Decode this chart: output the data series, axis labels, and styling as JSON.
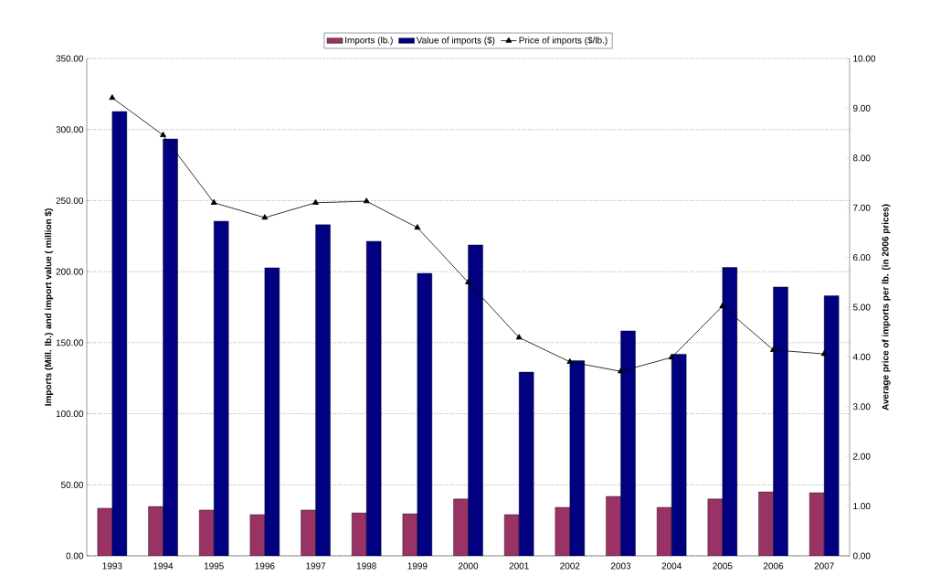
{
  "chart_data": {
    "type": "bar",
    "categories": [
      "1993",
      "1994",
      "1995",
      "1996",
      "1997",
      "1998",
      "1999",
      "2000",
      "2001",
      "2002",
      "2003",
      "2004",
      "2005",
      "2006",
      "2007"
    ],
    "series": [
      {
        "name": "Imports (lb.)",
        "color": "#993366",
        "values": [
          33.5,
          34.7,
          32.2,
          29.0,
          32.2,
          30.2,
          29.6,
          40.0,
          29.0,
          34.1,
          41.8,
          34.1,
          40.0,
          45.0,
          44.4
        ]
      },
      {
        "name": "Value of imports ($)",
        "color": "#000080",
        "values": [
          312.7,
          293.4,
          235.5,
          202.7,
          233.0,
          221.4,
          198.8,
          218.8,
          129.3,
          137.3,
          158.3,
          141.9,
          203.0,
          189.2,
          183.0
        ]
      },
      {
        "name": "Price of imports ($/lb.)",
        "type": "line",
        "axis": "y2",
        "marker": "triangle",
        "color": "#000000",
        "values": [
          9.21,
          8.46,
          7.1,
          6.8,
          7.1,
          7.13,
          6.6,
          5.5,
          4.39,
          3.9,
          3.71,
          3.99,
          5.02,
          4.14,
          4.06
        ]
      }
    ],
    "ylabel": "Imports (Mill. lb.) and import value  ( million $)",
    "y2label": "Average price of imports per lb. (in 2006 prices)",
    "ylim": [
      0,
      350
    ],
    "yticks": [
      {
        "value": 0,
        "label": "0.00"
      },
      {
        "value": 50,
        "label": "50.00"
      },
      {
        "value": 100,
        "label": "100.00"
      },
      {
        "value": 150,
        "label": "150.00"
      },
      {
        "value": 200,
        "label": "200.00"
      },
      {
        "value": 250,
        "label": "250.00"
      },
      {
        "value": 300,
        "label": "300.00"
      },
      {
        "value": 350,
        "label": "350.00"
      }
    ],
    "y2lim": [
      0,
      10
    ],
    "y2ticks": [
      {
        "value": 0,
        "label": "0.00"
      },
      {
        "value": 1,
        "label": "1.00"
      },
      {
        "value": 2,
        "label": "2.00"
      },
      {
        "value": 3,
        "label": "3.00"
      },
      {
        "value": 4,
        "label": "4.00"
      },
      {
        "value": 5,
        "label": "5.00"
      },
      {
        "value": 6,
        "label": "6.00"
      },
      {
        "value": 7,
        "label": "7.00"
      },
      {
        "value": 8,
        "label": "8.00"
      },
      {
        "value": 9,
        "label": "9.00"
      },
      {
        "value": 10,
        "label": "10.00"
      }
    ],
    "grid": "y",
    "legend": "top"
  }
}
